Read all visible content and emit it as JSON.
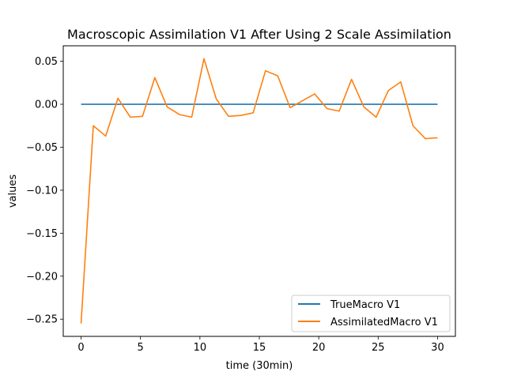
{
  "chart_data": {
    "type": "line",
    "title": "Macroscopic Assimilation V1 After Using 2 Scale Assimilation",
    "xlabel": "time (30min)",
    "ylabel": "values",
    "xlim": [
      -1.5,
      31.5
    ],
    "ylim": [
      -0.27,
      0.068
    ],
    "xticks": [
      0,
      5,
      10,
      15,
      20,
      25,
      30
    ],
    "xtick_labels": [
      "0",
      "5",
      "10",
      "15",
      "20",
      "25",
      "30"
    ],
    "yticks": [
      0.05,
      0.0,
      -0.05,
      -0.1,
      -0.15,
      -0.2,
      -0.25
    ],
    "ytick_labels": [
      "0.05",
      "0.00",
      "−0.05",
      "−0.10",
      "−0.15",
      "−0.20",
      "−0.25"
    ],
    "legend_position": "lower-right",
    "grid": false,
    "series": [
      {
        "name": "TrueMacro V1",
        "color": "#1f77b4",
        "x": [
          0,
          30
        ],
        "y": [
          0.0,
          0.0
        ]
      },
      {
        "name": "AssimilatedMacro V1",
        "color": "#ff7f0e",
        "x": [
          0,
          1.03,
          2.07,
          3.1,
          4.14,
          5.17,
          6.21,
          7.24,
          8.28,
          9.31,
          10.34,
          11.38,
          12.41,
          13.45,
          14.48,
          15.52,
          16.55,
          17.59,
          18.62,
          19.66,
          20.69,
          21.72,
          22.76,
          23.79,
          24.83,
          25.86,
          26.9,
          27.93,
          28.97,
          30.0
        ],
        "y": [
          -0.255,
          -0.025,
          -0.037,
          0.007,
          -0.015,
          -0.014,
          0.031,
          -0.003,
          -0.012,
          -0.015,
          0.053,
          0.006,
          -0.014,
          -0.013,
          -0.01,
          0.039,
          0.033,
          -0.004,
          0.004,
          0.012,
          -0.005,
          -0.008,
          0.029,
          -0.003,
          -0.015,
          0.016,
          0.026,
          -0.025,
          -0.04,
          -0.039
        ]
      }
    ]
  }
}
